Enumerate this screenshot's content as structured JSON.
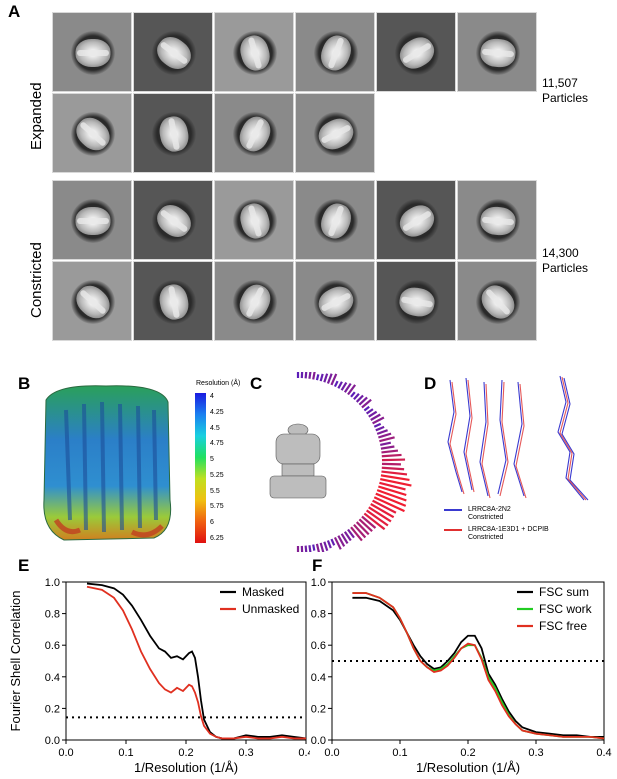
{
  "panels": {
    "A": {
      "letter": "A"
    },
    "B": {
      "letter": "B",
      "colorbar_title": "Resolution (Å)",
      "ticks": [
        "4",
        "4.25",
        "4.5",
        "4.75",
        "5",
        "5.25",
        "5.5",
        "5.75",
        "6",
        "6.25"
      ]
    },
    "C": {
      "letter": "C"
    },
    "D": {
      "letter": "D",
      "legend": [
        {
          "label_line1": "LRRC8A-2N2",
          "label_line2": "Constricted",
          "color": "#3a3ad0"
        },
        {
          "label_line1": "LRRC8A-1E3D1 + DCPIB",
          "label_line2": "Constricted",
          "color": "#e03030"
        }
      ]
    },
    "E": {
      "letter": "E"
    },
    "F": {
      "letter": "F"
    }
  },
  "classes": {
    "expanded": {
      "label": "Expanded",
      "count_line1": "11,507",
      "count_line2": "Particles"
    },
    "constricted": {
      "label": "Constricted",
      "count_line1": "14,300",
      "count_line2": "Particles"
    }
  },
  "chart_data": [
    {
      "type": "line",
      "panel": "E",
      "xlabel": "1/Resolution (1/Å)",
      "ylabel": "Fourier Shell Correlation",
      "xlim": [
        0.0,
        0.4
      ],
      "ylim": [
        0.0,
        1.0
      ],
      "xticks": [
        "0.0",
        "0.1",
        "0.2",
        "0.3",
        "0.4"
      ],
      "yticks": [
        "0.0",
        "0.2",
        "0.4",
        "0.6",
        "0.8",
        "1.0"
      ],
      "legend_position": "top-right",
      "threshold": 0.143,
      "series": [
        {
          "name": "Masked",
          "color": "#000000",
          "x": [
            0.035,
            0.06,
            0.08,
            0.095,
            0.11,
            0.125,
            0.14,
            0.155,
            0.165,
            0.175,
            0.185,
            0.195,
            0.205,
            0.21,
            0.215,
            0.22,
            0.225,
            0.23,
            0.24,
            0.25,
            0.26,
            0.28,
            0.3,
            0.32,
            0.34,
            0.36,
            0.38,
            0.4
          ],
          "y": [
            0.99,
            0.98,
            0.96,
            0.92,
            0.85,
            0.76,
            0.66,
            0.58,
            0.56,
            0.52,
            0.53,
            0.51,
            0.55,
            0.56,
            0.52,
            0.4,
            0.25,
            0.13,
            0.05,
            0.02,
            0.01,
            0.01,
            0.03,
            0.02,
            0.02,
            0.03,
            0.02,
            0.01
          ]
        },
        {
          "name": "Unmasked",
          "color": "#e03020",
          "x": [
            0.035,
            0.06,
            0.08,
            0.095,
            0.11,
            0.125,
            0.14,
            0.155,
            0.165,
            0.175,
            0.185,
            0.195,
            0.205,
            0.21,
            0.215,
            0.22,
            0.225,
            0.23,
            0.24,
            0.25,
            0.26,
            0.28,
            0.3,
            0.32,
            0.34,
            0.36,
            0.38,
            0.4
          ],
          "y": [
            0.97,
            0.95,
            0.9,
            0.82,
            0.7,
            0.56,
            0.45,
            0.36,
            0.32,
            0.3,
            0.33,
            0.31,
            0.35,
            0.34,
            0.3,
            0.24,
            0.15,
            0.09,
            0.04,
            0.02,
            0.01,
            0.01,
            0.02,
            0.01,
            0.01,
            0.02,
            0.01,
            0.01
          ]
        }
      ]
    },
    {
      "type": "line",
      "panel": "F",
      "xlabel": "1/Resolution (1/Å)",
      "ylabel": "",
      "xlim": [
        0.0,
        0.4
      ],
      "ylim": [
        0.0,
        1.0
      ],
      "xticks": [
        "0.0",
        "0.1",
        "0.2",
        "0.3",
        "0.4"
      ],
      "yticks": [
        "0.0",
        "0.2",
        "0.4",
        "0.6",
        "0.8",
        "1.0"
      ],
      "legend_position": "top-right",
      "threshold": 0.5,
      "series": [
        {
          "name": "FSC sum",
          "color": "#000000",
          "x": [
            0.03,
            0.05,
            0.07,
            0.09,
            0.1,
            0.11,
            0.12,
            0.13,
            0.14,
            0.15,
            0.16,
            0.17,
            0.18,
            0.19,
            0.2,
            0.21,
            0.22,
            0.23,
            0.24,
            0.25,
            0.26,
            0.27,
            0.28,
            0.3,
            0.32,
            0.34,
            0.36,
            0.38,
            0.4
          ],
          "y": [
            0.9,
            0.9,
            0.88,
            0.82,
            0.76,
            0.68,
            0.6,
            0.53,
            0.48,
            0.45,
            0.46,
            0.5,
            0.55,
            0.62,
            0.66,
            0.66,
            0.58,
            0.42,
            0.35,
            0.26,
            0.18,
            0.12,
            0.08,
            0.05,
            0.04,
            0.03,
            0.03,
            0.02,
            0.02
          ]
        },
        {
          "name": "FSC work",
          "color": "#22cc22",
          "x": [
            0.03,
            0.05,
            0.07,
            0.09,
            0.1,
            0.11,
            0.12,
            0.13,
            0.14,
            0.15,
            0.16,
            0.17,
            0.18,
            0.19,
            0.2,
            0.21,
            0.22,
            0.23,
            0.24,
            0.25,
            0.26,
            0.27,
            0.28,
            0.3,
            0.32,
            0.34,
            0.36,
            0.38,
            0.4
          ],
          "y": [
            0.93,
            0.93,
            0.9,
            0.84,
            0.77,
            0.68,
            0.58,
            0.5,
            0.46,
            0.44,
            0.45,
            0.48,
            0.53,
            0.58,
            0.6,
            0.6,
            0.52,
            0.4,
            0.33,
            0.24,
            0.16,
            0.1,
            0.06,
            0.04,
            0.03,
            0.02,
            0.02,
            0.02,
            0.01
          ]
        },
        {
          "name": "FSC free",
          "color": "#e03020",
          "x": [
            0.03,
            0.05,
            0.07,
            0.09,
            0.1,
            0.11,
            0.12,
            0.13,
            0.14,
            0.15,
            0.16,
            0.17,
            0.18,
            0.19,
            0.2,
            0.21,
            0.22,
            0.23,
            0.24,
            0.25,
            0.26,
            0.27,
            0.28,
            0.3,
            0.32,
            0.34,
            0.36,
            0.38,
            0.4
          ],
          "y": [
            0.93,
            0.93,
            0.9,
            0.84,
            0.77,
            0.68,
            0.58,
            0.5,
            0.46,
            0.43,
            0.44,
            0.47,
            0.52,
            0.58,
            0.61,
            0.6,
            0.51,
            0.38,
            0.31,
            0.22,
            0.15,
            0.1,
            0.06,
            0.04,
            0.03,
            0.02,
            0.02,
            0.02,
            0.01
          ]
        }
      ]
    }
  ]
}
